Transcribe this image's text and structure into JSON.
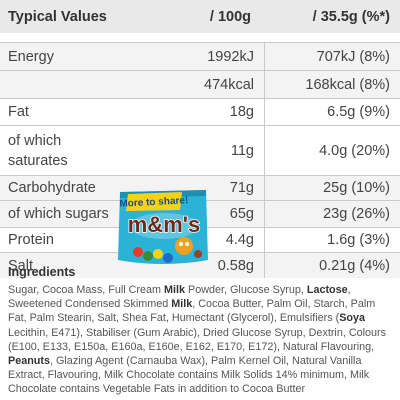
{
  "table": {
    "headers": {
      "col1": "Typical Values",
      "col2": "/ 100g",
      "col3": "/ 35.5g (%*)"
    },
    "rows": {
      "energy": {
        "label": "Energy",
        "per100": "1992kJ",
        "perServing": "707kJ (8%)"
      },
      "kcal": {
        "label": "",
        "per100": "474kcal",
        "perServing": "168kcal (8%)"
      },
      "fat": {
        "label": "Fat",
        "per100": "18g",
        "perServing": "6.5g (9%)"
      },
      "saturates": {
        "label_line1": "of which",
        "label_line2": "saturates",
        "per100": "11g",
        "perServing": "4.0g (20%)"
      },
      "carbohydrate": {
        "label": "Carbohydrate",
        "per100": "71g",
        "perServing": "25g (10%)"
      },
      "sugars": {
        "label": "of which sugars",
        "per100": "65g",
        "perServing": "23g (26%)"
      },
      "protein": {
        "label": "Protein",
        "per100": "4.4g",
        "perServing": "1.6g (3%)"
      },
      "salt": {
        "label": "Salt",
        "per100": "0.58g",
        "perServing": "0.21g (4%)"
      }
    }
  },
  "product": {
    "banner": "More to share!",
    "brand": "m&m's",
    "bag_color": "#2bb3d6",
    "banner_color": "#f5d21a",
    "brand_color": "#6b2a1a"
  },
  "ingredients": {
    "title": "Ingredients",
    "p1": "Sugar, Cocoa Mass, Full Cream ",
    "b1": "Milk",
    "p2": " Powder, Glucose Syrup, ",
    "b2": "Lactose",
    "p3": ", Sweetened Condensed Skimmed ",
    "b3": "Milk",
    "p4": ", Cocoa Butter, Palm Oil, Starch, Palm Fat, Palm Stearin, Salt, Shea Fat, Humectant (Glycerol), Emulsifiers (",
    "b4": "Soya",
    "p5": " Lecithin, E471), Stabiliser (Gum Arabic), Dried Glucose Syrup, Dextrin, Colours (E100, E133, E150a, E160a, E160e, E162, E170, E172), Natural Flavouring, ",
    "b5": "Peanuts",
    "p6": ", Glazing Agent (Carnauba Wax), Palm Kernel Oil, Natural Vanilla Extract, Flavouring, Milk Chocolate contains Milk Solids 14% minimum, Milk Chocolate contains Vegetable Fats in addition to Cocoa Butter"
  }
}
